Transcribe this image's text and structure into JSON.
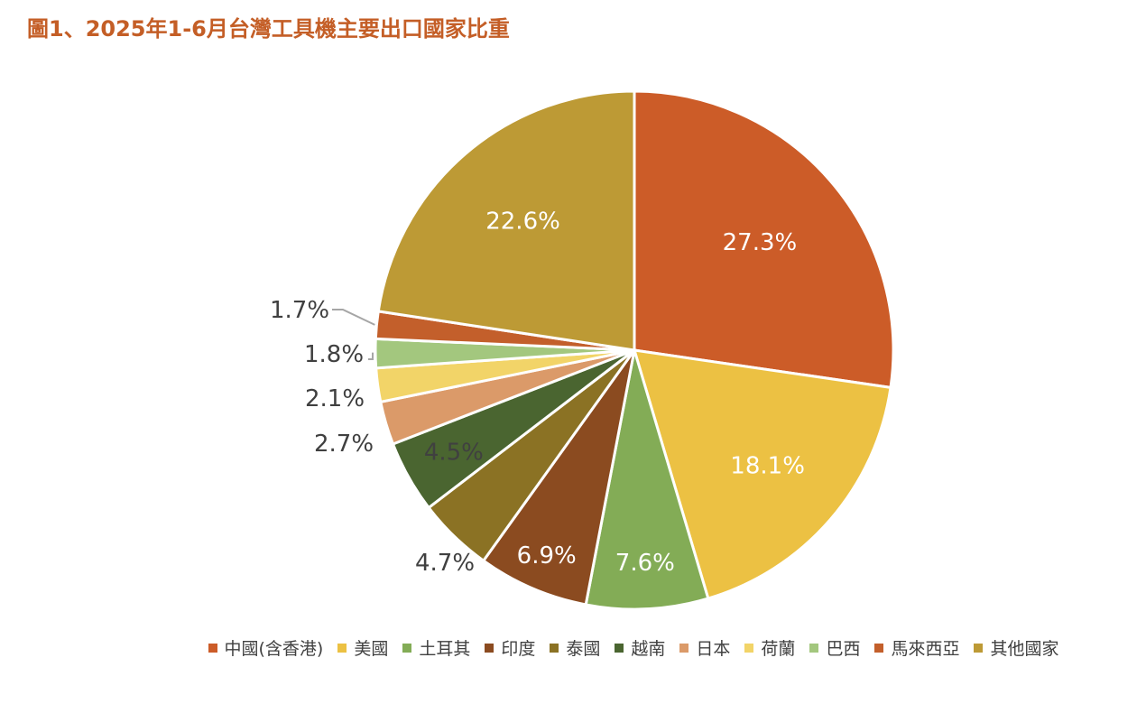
{
  "chart_data": {
    "type": "pie",
    "title": "圖1、2025年1-6月台灣工具機主要出口國家比重",
    "legend_position": "bottom",
    "series": [
      {
        "name": "中國(含香港)",
        "value": 27.3,
        "label": "27.3%",
        "color": "#CC5C28",
        "label_color": "#ffffff"
      },
      {
        "name": "美國",
        "value": 18.1,
        "label": "18.1%",
        "color": "#ECC143",
        "label_color": "#ffffff"
      },
      {
        "name": "土耳其",
        "value": 7.6,
        "label": "7.6%",
        "color": "#83AC56",
        "label_color": "#ffffff"
      },
      {
        "name": "印度",
        "value": 6.9,
        "label": "6.9%",
        "color": "#8B4B20",
        "label_color": "#ffffff"
      },
      {
        "name": "泰國",
        "value": 4.7,
        "label": "4.7%",
        "color": "#8B7224",
        "label_color": "#404040"
      },
      {
        "name": "越南",
        "value": 4.5,
        "label": "4.5%",
        "color": "#4A6530",
        "label_color": "#404040"
      },
      {
        "name": "日本",
        "value": 2.7,
        "label": "2.7%",
        "color": "#DB9A69",
        "label_color": "#404040"
      },
      {
        "name": "荷蘭",
        "value": 2.1,
        "label": "2.1%",
        "color": "#F2D468",
        "label_color": "#404040"
      },
      {
        "name": "巴西",
        "value": 1.8,
        "label": "1.8%",
        "color": "#A3C77E",
        "label_color": "#404040"
      },
      {
        "name": "馬來西亞",
        "value": 1.7,
        "label": "1.7%",
        "color": "#C35F2B",
        "label_color": "#404040"
      },
      {
        "name": "其他國家",
        "value": 22.6,
        "label": "22.6%",
        "color": "#BD9A35",
        "label_color": "#ffffff"
      }
    ]
  }
}
